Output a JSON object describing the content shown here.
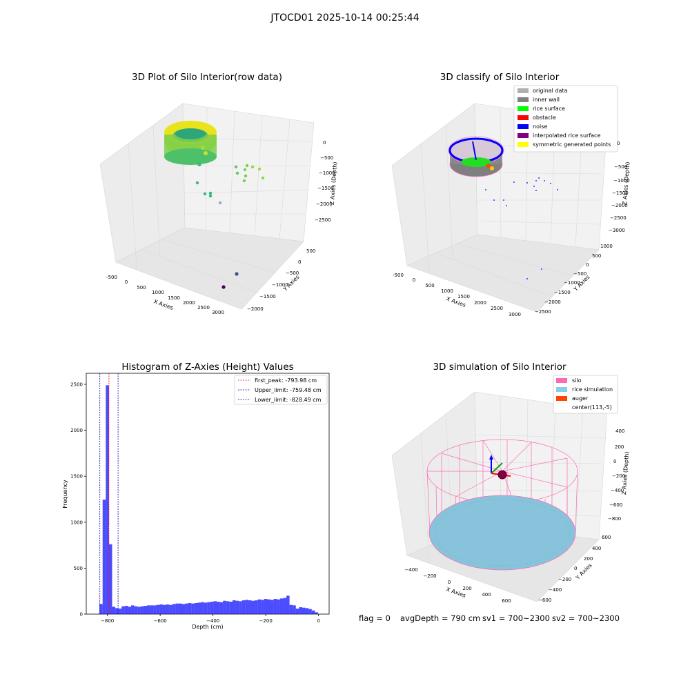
{
  "suptitle": "JTOCD01 2025-10-14 00:25:44",
  "chart_data": [
    {
      "type": "scatter3d",
      "title": "3D Plot of Silo Interior(row data)",
      "xlabel": "X Axies",
      "ylabel": "Y Axies",
      "zlabel": "Z Axies (Depth)",
      "xticks": [
        "-500",
        "0",
        "500",
        "1000",
        "1500",
        "2000",
        "2500",
        "3000"
      ],
      "yticks": [
        "500",
        "0",
        "−500",
        "−1000",
        "−1500",
        "−2000"
      ],
      "zticks": [
        "0",
        "−500",
        "−1000",
        "−1500",
        "−2000",
        "−2500"
      ],
      "colormap": "viridis",
      "grid": true
    },
    {
      "type": "scatter3d",
      "title": "3D classify of Silo Interior",
      "xlabel": "X Axies",
      "ylabel": "Y Axies",
      "zlabel": "Z Axies (Depth)",
      "xticks": [
        "-500",
        "0",
        "500",
        "1000",
        "1500",
        "2000",
        "2500",
        "3000"
      ],
      "yticks": [
        "1000",
        "500",
        "0",
        "−500",
        "−1000",
        "−1500",
        "−2000",
        "−2500"
      ],
      "zticks": [
        "0",
        "−500",
        "−1000",
        "−1500",
        "−2000",
        "−2500",
        "−3000"
      ],
      "legend_position": "top-right",
      "legend": [
        {
          "label": "original data",
          "color": "#b0b0b0"
        },
        {
          "label": "inner wall",
          "color": "#808080"
        },
        {
          "label": "rice surface",
          "color": "#00ff00"
        },
        {
          "label": "obstacle",
          "color": "#ff0000"
        },
        {
          "label": "noise",
          "color": "#0000ff"
        },
        {
          "label": "interpolated rice surface",
          "color": "#800080"
        },
        {
          "label": "symmetric generated points",
          "color": "#ffff00"
        }
      ],
      "grid": true
    },
    {
      "type": "bar",
      "title": "Histogram of Z-Axies (Height) Values",
      "xlabel": "Depth (cm)",
      "ylabel": "Frequency",
      "xlim": [
        -880,
        40
      ],
      "ylim": [
        0,
        2620
      ],
      "xticks": [
        -800,
        -600,
        -400,
        -200,
        0
      ],
      "xtick_labels": [
        "−800",
        "−600",
        "−400",
        "−200",
        "0"
      ],
      "yticks": [
        0,
        500,
        1000,
        1500,
        2000,
        2500
      ],
      "bar_color": "#0000ff",
      "bins": [
        [
          -830,
          -818,
          110
        ],
        [
          -818,
          -806,
          1245
        ],
        [
          -806,
          -794,
          2490
        ],
        [
          -794,
          -782,
          760
        ],
        [
          -782,
          -770,
          80
        ],
        [
          -770,
          -758,
          65
        ],
        [
          -758,
          -746,
          60
        ],
        [
          -746,
          -734,
          85
        ],
        [
          -734,
          -722,
          90
        ],
        [
          -722,
          -710,
          80
        ],
        [
          -710,
          -698,
          95
        ],
        [
          -698,
          -686,
          85
        ],
        [
          -686,
          -674,
          80
        ],
        [
          -674,
          -662,
          85
        ],
        [
          -662,
          -650,
          90
        ],
        [
          -650,
          -638,
          95
        ],
        [
          -638,
          -626,
          95
        ],
        [
          -626,
          -614,
          95
        ],
        [
          -614,
          -602,
          100
        ],
        [
          -602,
          -590,
          105
        ],
        [
          -590,
          -578,
          100
        ],
        [
          -578,
          -566,
          105
        ],
        [
          -566,
          -554,
          100
        ],
        [
          -554,
          -542,
          110
        ],
        [
          -542,
          -530,
          115
        ],
        [
          -530,
          -518,
          115
        ],
        [
          -518,
          -506,
          110
        ],
        [
          -506,
          -494,
          115
        ],
        [
          -494,
          -482,
          120
        ],
        [
          -482,
          -470,
          115
        ],
        [
          -470,
          -458,
          120
        ],
        [
          -458,
          -446,
          125
        ],
        [
          -446,
          -434,
          130
        ],
        [
          -434,
          -422,
          125
        ],
        [
          -422,
          -410,
          130
        ],
        [
          -410,
          -398,
          135
        ],
        [
          -398,
          -386,
          140
        ],
        [
          -386,
          -374,
          135
        ],
        [
          -374,
          -362,
          130
        ],
        [
          -362,
          -350,
          145
        ],
        [
          -350,
          -338,
          140
        ],
        [
          -338,
          -326,
          135
        ],
        [
          -326,
          -314,
          150
        ],
        [
          -314,
          -302,
          145
        ],
        [
          -302,
          -290,
          140
        ],
        [
          -290,
          -278,
          150
        ],
        [
          -278,
          -266,
          155
        ],
        [
          -266,
          -254,
          150
        ],
        [
          -254,
          -242,
          145
        ],
        [
          -242,
          -230,
          150
        ],
        [
          -230,
          -218,
          160
        ],
        [
          -218,
          -206,
          155
        ],
        [
          -206,
          -194,
          165
        ],
        [
          -194,
          -182,
          160
        ],
        [
          -182,
          -170,
          155
        ],
        [
          -170,
          -158,
          165
        ],
        [
          -158,
          -146,
          160
        ],
        [
          -146,
          -134,
          170
        ],
        [
          -134,
          -122,
          175
        ],
        [
          -122,
          -110,
          200
        ],
        [
          -110,
          -98,
          100
        ],
        [
          -98,
          -86,
          95
        ],
        [
          -86,
          -74,
          60
        ],
        [
          -74,
          -62,
          75
        ],
        [
          -62,
          -50,
          70
        ],
        [
          -50,
          -38,
          65
        ],
        [
          -38,
          -26,
          55
        ],
        [
          -26,
          -14,
          40
        ],
        [
          -14,
          -2,
          20
        ]
      ],
      "lines": [
        {
          "label": "first_peak: -793.98 cm",
          "x": -793.98,
          "color": "#ff0000"
        },
        {
          "label": "Upper_limit: -759.48 cm",
          "x": -759.48,
          "color": "#0000aa"
        },
        {
          "label": "Lower_limit: -828.49 cm",
          "x": -828.49,
          "color": "#0000aa"
        }
      ],
      "legend_position": "top-right"
    },
    {
      "type": "surface3d",
      "title": "3D simulation of Silo Interior",
      "xlabel": "X Axies",
      "ylabel": "Y Axies",
      "zlabel": "Z Axies (Depth)",
      "xticks": [
        "−400",
        "−200",
        "0",
        "200",
        "400",
        "600"
      ],
      "yticks": [
        "600",
        "400",
        "200",
        "0",
        "−200",
        "−400",
        "−600"
      ],
      "zticks": [
        "400",
        "200",
        "0",
        "−200",
        "−400",
        "−600",
        "−800"
      ],
      "legend_position": "top-right",
      "legend": [
        {
          "label": "silo",
          "color": "#ff69b4"
        },
        {
          "label": "rice simulation",
          "color": "#87ceeb"
        },
        {
          "label": "auger",
          "color": "#ff4500"
        },
        {
          "label": "center(113,-5)",
          "color": ""
        }
      ],
      "grid": true
    }
  ],
  "footer": {
    "flag": "flag = 0",
    "avg_depth": "avgDepth = 790 cm",
    "sv1": "sv1 = 700~2300",
    "sv2": "sv2 = 700~2300"
  }
}
